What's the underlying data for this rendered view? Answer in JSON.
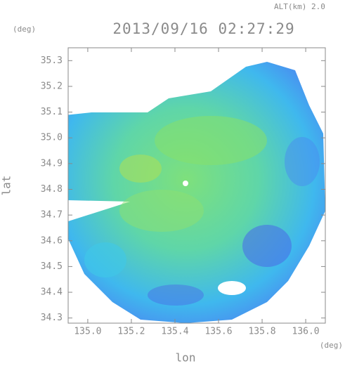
{
  "header": {
    "altitude": "ALT(km) 2.0",
    "title": "2013/09/16 02:27:29"
  },
  "axes": {
    "y_unit": "(deg)",
    "y_title": "lat",
    "x_title": "lon",
    "x_unit": "(deg)",
    "xlim": [
      134.91,
      136.09
    ],
    "ylim": [
      34.28,
      35.35
    ],
    "xticks": [
      {
        "value": 135,
        "label": "135.0"
      },
      {
        "value": 135.2,
        "label": "135.2"
      },
      {
        "value": 135.4,
        "label": "135.4"
      },
      {
        "value": 135.6,
        "label": "135.6"
      },
      {
        "value": 135.8,
        "label": "135.8"
      },
      {
        "value": 136,
        "label": "136.0"
      }
    ],
    "yticks": [
      {
        "value": 34.3,
        "label": "34.3"
      },
      {
        "value": 34.4,
        "label": "34.4"
      },
      {
        "value": 34.5,
        "label": "34.5"
      },
      {
        "value": 34.6,
        "label": "34.6"
      },
      {
        "value": 34.7,
        "label": "34.7"
      },
      {
        "value": 34.8,
        "label": "34.8"
      },
      {
        "value": 34.9,
        "label": "34.9"
      },
      {
        "value": 35,
        "label": "35.0"
      },
      {
        "value": 35.1,
        "label": "35.1"
      },
      {
        "value": 35.2,
        "label": "35.2"
      },
      {
        "value": 35.3,
        "label": "35.3"
      }
    ]
  }
}
